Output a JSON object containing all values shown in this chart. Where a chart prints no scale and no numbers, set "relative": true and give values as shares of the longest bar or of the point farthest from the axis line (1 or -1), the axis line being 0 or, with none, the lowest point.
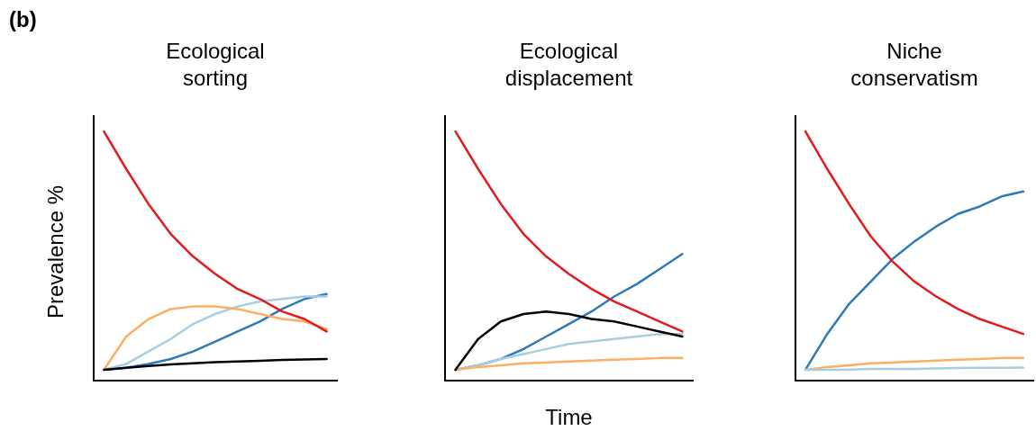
{
  "chart_data": [
    {
      "type": "line",
      "title": "Ecological sorting",
      "ylabel": "Prevalence %",
      "annotations": [
        "(b)"
      ],
      "relative": true,
      "marker": "none",
      "categories": [
        null,
        null,
        null,
        null,
        null,
        null,
        null,
        null,
        null,
        null,
        null
      ],
      "series": [
        {
          "color": "#e31a1c",
          "values": [
            1,
            0.85,
            0.71,
            0.59,
            0.5,
            0.43,
            0.37,
            0.33,
            0.28,
            0.25,
            0.2
          ]
        },
        {
          "color": "#000000",
          "values": [
            0.047,
            0.055,
            0.062,
            0.068,
            0.073,
            0.077,
            0.08,
            0.083,
            0.086,
            0.088,
            0.09
          ]
        },
        {
          "color": "#fdae61",
          "values": [
            0.047,
            0.18,
            0.25,
            0.29,
            0.3,
            0.3,
            0.29,
            0.27,
            0.25,
            0.24,
            0.21
          ]
        },
        {
          "color": "#a6cee3",
          "values": [
            0.047,
            0.07,
            0.12,
            0.17,
            0.23,
            0.27,
            0.3,
            0.32,
            0.33,
            0.34,
            0.34
          ]
        },
        {
          "color": "#2b7bba",
          "values": [
            0.047,
            0.055,
            0.07,
            0.09,
            0.12,
            0.16,
            0.2,
            0.24,
            0.29,
            0.33,
            0.35
          ]
        }
      ]
    },
    {
      "type": "line",
      "title": "Ecological displacement",
      "xlabel": "Time",
      "relative": true,
      "marker": "none",
      "categories": [
        null,
        null,
        null,
        null,
        null,
        null,
        null,
        null,
        null,
        null,
        null
      ],
      "series": [
        {
          "color": "#e31a1c",
          "values": [
            1,
            0.85,
            0.71,
            0.59,
            0.5,
            0.43,
            0.37,
            0.32,
            0.28,
            0.24,
            0.2
          ]
        },
        {
          "color": "#000000",
          "values": [
            0.047,
            0.17,
            0.24,
            0.27,
            0.28,
            0.27,
            0.25,
            0.24,
            0.22,
            0.2,
            0.18
          ]
        },
        {
          "color": "#fdae61",
          "values": [
            0.047,
            0.058,
            0.065,
            0.073,
            0.076,
            0.08,
            0.084,
            0.087,
            0.09,
            0.094,
            0.094
          ]
        },
        {
          "color": "#a6cee3",
          "values": [
            0.047,
            0.065,
            0.09,
            0.11,
            0.13,
            0.15,
            0.16,
            0.17,
            0.18,
            0.19,
            0.19
          ]
        },
        {
          "color": "#2b7bba",
          "values": [
            0.047,
            0.065,
            0.09,
            0.13,
            0.18,
            0.23,
            0.28,
            0.34,
            0.39,
            0.45,
            0.51
          ]
        }
      ]
    },
    {
      "type": "line",
      "title": "Niche conservatism",
      "relative": true,
      "marker": "none",
      "categories": [
        null,
        null,
        null,
        null,
        null,
        null,
        null,
        null,
        null,
        null,
        null
      ],
      "series": [
        {
          "color": "#e31a1c",
          "values": [
            1,
            0.85,
            0.71,
            0.58,
            0.48,
            0.4,
            0.34,
            0.29,
            0.25,
            0.22,
            0.19
          ]
        },
        {
          "color": "#a6cee3",
          "values": [
            0.047,
            0.047,
            0.048,
            0.05,
            0.05,
            0.05,
            0.052,
            0.054,
            0.055,
            0.055,
            0.056
          ]
        },
        {
          "color": "#fdae61",
          "values": [
            0.047,
            0.058,
            0.065,
            0.073,
            0.076,
            0.08,
            0.084,
            0.087,
            0.09,
            0.094,
            0.094
          ]
        },
        {
          "color": "#2b7bba",
          "values": [
            0.047,
            0.19,
            0.31,
            0.4,
            0.49,
            0.56,
            0.62,
            0.67,
            0.7,
            0.74,
            0.76
          ]
        }
      ]
    }
  ]
}
